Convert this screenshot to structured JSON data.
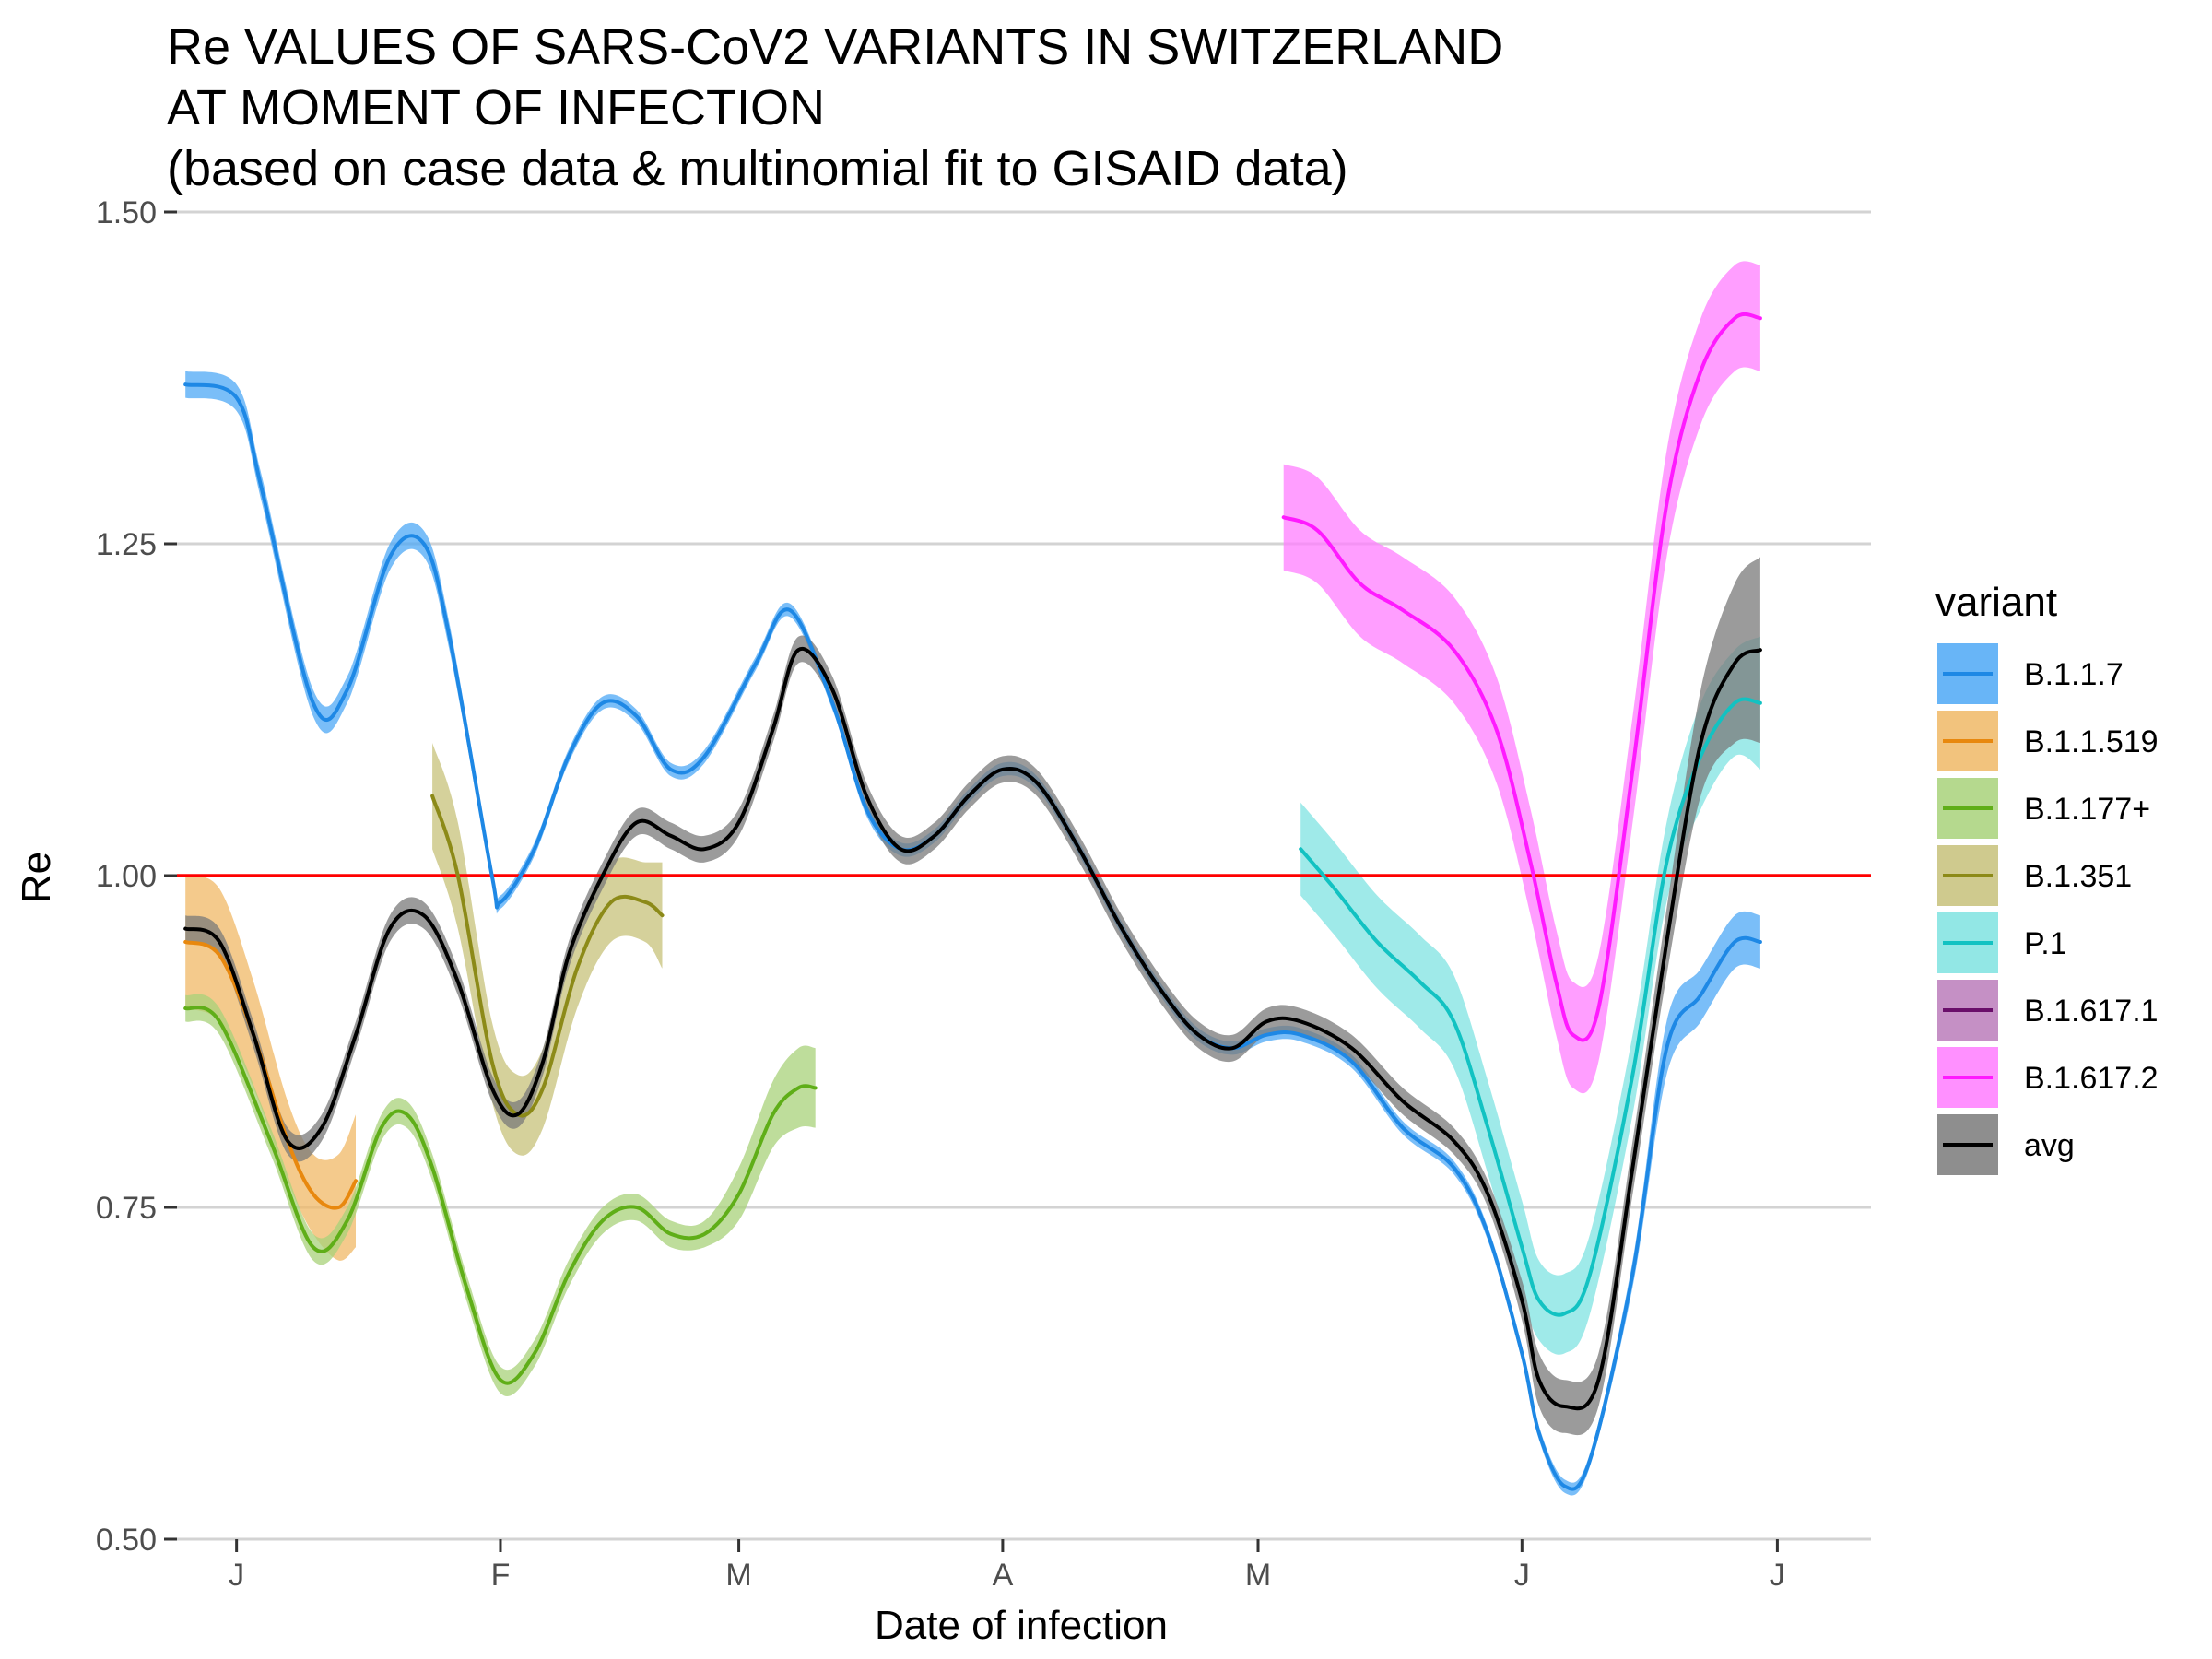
{
  "chart_data": {
    "type": "line",
    "title_lines": [
      "Re VALUES OF SARS-CoV2 VARIANTS IN SWITZERLAND",
      "AT MOMENT OF INFECTION",
      "(based on case data & multinomial fit to GISAID data)"
    ],
    "xlabel": "Date of infection",
    "ylabel": "Re",
    "x_ticks": [
      {
        "label": "J",
        "date": "2021-01-01"
      },
      {
        "label": "F",
        "date": "2021-02-01"
      },
      {
        "label": "M",
        "date": "2021-03-01"
      },
      {
        "label": "A",
        "date": "2021-04-01"
      },
      {
        "label": "M",
        "date": "2021-05-01"
      },
      {
        "label": "J",
        "date": "2021-06-01"
      },
      {
        "label": "J",
        "date": "2021-07-01"
      }
    ],
    "xlim": [
      "2020-12-25",
      "2021-07-12"
    ],
    "ylim": [
      0.5,
      1.5
    ],
    "y_ticks": [
      "0.50",
      "0.75",
      "1.00",
      "1.25",
      "1.50"
    ],
    "reference_line": {
      "y": 1.0,
      "color": "#ff0000"
    },
    "grid": true,
    "legend_title": "variant",
    "legend_position": "right",
    "series": [
      {
        "name": "B.1.1.7",
        "color": "#1e88e5",
        "band_color": "#4ea8f6",
        "x": [
          "2020-12-26",
          "2021-01-01",
          "2021-01-04",
          "2021-01-10",
          "2021-01-14",
          "2021-01-19",
          "2021-01-23",
          "2021-01-26",
          "2021-01-31",
          "2021-02-01",
          "2021-02-05",
          "2021-02-09",
          "2021-02-13",
          "2021-02-17",
          "2021-02-21",
          "2021-02-25",
          "2021-03-03",
          "2021-03-07",
          "2021-03-12",
          "2021-03-16",
          "2021-03-20",
          "2021-03-24",
          "2021-03-28",
          "2021-04-01",
          "2021-04-05",
          "2021-04-10",
          "2021-04-15",
          "2021-04-20",
          "2021-04-24",
          "2021-04-28",
          "2021-05-02",
          "2021-05-06",
          "2021-05-12",
          "2021-05-18",
          "2021-05-24",
          "2021-05-28",
          "2021-06-01",
          "2021-06-03",
          "2021-06-06",
          "2021-06-09",
          "2021-06-14",
          "2021-06-18",
          "2021-06-22",
          "2021-06-26",
          "2021-06-29"
        ],
        "values": [
          1.37,
          1.36,
          1.29,
          1.13,
          1.14,
          1.24,
          1.25,
          1.18,
          1.0,
          0.98,
          1.02,
          1.09,
          1.13,
          1.12,
          1.08,
          1.09,
          1.16,
          1.2,
          1.13,
          1.05,
          1.02,
          1.03,
          1.06,
          1.08,
          1.07,
          1.02,
          0.96,
          0.91,
          0.88,
          0.87,
          0.88,
          0.88,
          0.86,
          0.81,
          0.78,
          0.73,
          0.64,
          0.58,
          0.54,
          0.56,
          0.7,
          0.87,
          0.91,
          0.95,
          0.95
        ],
        "ci_half": [
          0.01,
          0.01,
          0.01,
          0.01,
          0.01,
          0.01,
          0.01,
          0.01,
          0.005,
          0.005,
          0.005,
          0.005,
          0.005,
          0.005,
          0.005,
          0.005,
          0.005,
          0.005,
          0.005,
          0.005,
          0.005,
          0.005,
          0.005,
          0.005,
          0.005,
          0.005,
          0.005,
          0.005,
          0.005,
          0.005,
          0.005,
          0.005,
          0.005,
          0.005,
          0.005,
          0.005,
          0.005,
          0.005,
          0.005,
          0.005,
          0.01,
          0.02,
          0.02,
          0.02,
          0.02
        ]
      },
      {
        "name": "B.1.1.519",
        "color": "#e8880e",
        "band_color": "#f0b866",
        "x": [
          "2020-12-26",
          "2020-12-30",
          "2021-01-03",
          "2021-01-07",
          "2021-01-10",
          "2021-01-13",
          "2021-01-15"
        ],
        "values": [
          0.95,
          0.94,
          0.88,
          0.8,
          0.76,
          0.75,
          0.77
        ],
        "ci_half": [
          0.05,
          0.05,
          0.04,
          0.03,
          0.03,
          0.04,
          0.05
        ]
      },
      {
        "name": "B.1.177+",
        "color": "#5fae18",
        "band_color": "#a8d27a",
        "x": [
          "2020-12-26",
          "2020-12-30",
          "2021-01-05",
          "2021-01-10",
          "2021-01-14",
          "2021-01-18",
          "2021-01-21",
          "2021-01-24",
          "2021-01-28",
          "2021-02-01",
          "2021-02-05",
          "2021-02-09",
          "2021-02-13",
          "2021-02-17",
          "2021-02-21",
          "2021-02-25",
          "2021-03-01",
          "2021-03-05",
          "2021-03-08",
          "2021-03-10"
        ],
        "values": [
          0.9,
          0.89,
          0.8,
          0.72,
          0.74,
          0.81,
          0.82,
          0.78,
          0.69,
          0.62,
          0.64,
          0.7,
          0.74,
          0.75,
          0.73,
          0.73,
          0.76,
          0.82,
          0.84,
          0.84
        ],
        "ci_half": [
          0.01,
          0.01,
          0.01,
          0.01,
          0.01,
          0.01,
          0.01,
          0.01,
          0.01,
          0.01,
          0.01,
          0.01,
          0.01,
          0.01,
          0.01,
          0.01,
          0.02,
          0.025,
          0.03,
          0.03
        ]
      },
      {
        "name": "B.1.351",
        "color": "#8c8a18",
        "band_color": "#c7c17a",
        "x": [
          "2021-01-24",
          "2021-01-27",
          "2021-01-31",
          "2021-02-03",
          "2021-02-06",
          "2021-02-10",
          "2021-02-14",
          "2021-02-18",
          "2021-02-20"
        ],
        "values": [
          1.06,
          1.0,
          0.86,
          0.82,
          0.84,
          0.93,
          0.98,
          0.98,
          0.97
        ],
        "ci_half": [
          0.04,
          0.04,
          0.03,
          0.03,
          0.03,
          0.03,
          0.03,
          0.03,
          0.04
        ]
      },
      {
        "name": "P.1",
        "color": "#12c2c2",
        "band_color": "#7fe3e1",
        "x": [
          "2021-05-06",
          "2021-05-10",
          "2021-05-15",
          "2021-05-20",
          "2021-05-24",
          "2021-05-28",
          "2021-06-01",
          "2021-06-03",
          "2021-06-06",
          "2021-06-09",
          "2021-06-14",
          "2021-06-18",
          "2021-06-22",
          "2021-06-26",
          "2021-06-29"
        ],
        "values": [
          1.02,
          0.99,
          0.95,
          0.92,
          0.89,
          0.81,
          0.72,
          0.68,
          0.67,
          0.7,
          0.85,
          1.01,
          1.09,
          1.13,
          1.13
        ],
        "ci_half": [
          0.035,
          0.035,
          0.035,
          0.035,
          0.035,
          0.035,
          0.035,
          0.03,
          0.03,
          0.03,
          0.03,
          0.03,
          0.04,
          0.04,
          0.05
        ]
      },
      {
        "name": "B.1.617.1",
        "color": "#6a0f6a",
        "band_color": "#bb7dbb",
        "x": [],
        "values": [],
        "ci_half": []
      },
      {
        "name": "B.1.617.2",
        "color": "#ff1aff",
        "band_color": "#ff7dff",
        "x": [
          "2021-05-04",
          "2021-05-08",
          "2021-05-13",
          "2021-05-18",
          "2021-05-24",
          "2021-05-29",
          "2021-06-02",
          "2021-06-05",
          "2021-06-07",
          "2021-06-10",
          "2021-06-14",
          "2021-06-18",
          "2021-06-22",
          "2021-06-26",
          "2021-06-29"
        ],
        "values": [
          1.27,
          1.26,
          1.22,
          1.2,
          1.17,
          1.11,
          1.01,
          0.92,
          0.88,
          0.9,
          1.08,
          1.28,
          1.38,
          1.42,
          1.42
        ],
        "ci_half": [
          0.04,
          0.04,
          0.04,
          0.04,
          0.04,
          0.04,
          0.04,
          0.04,
          0.04,
          0.04,
          0.04,
          0.04,
          0.04,
          0.04,
          0.04
        ]
      },
      {
        "name": "avg",
        "color": "#000000",
        "band_color": "#7a7a7a",
        "x": [
          "2020-12-26",
          "2020-12-30",
          "2021-01-03",
          "2021-01-07",
          "2021-01-11",
          "2021-01-15",
          "2021-01-19",
          "2021-01-23",
          "2021-01-27",
          "2021-01-31",
          "2021-02-03",
          "2021-02-06",
          "2021-02-09",
          "2021-02-13",
          "2021-02-17",
          "2021-02-21",
          "2021-02-25",
          "2021-03-01",
          "2021-03-05",
          "2021-03-08",
          "2021-03-12",
          "2021-03-16",
          "2021-03-20",
          "2021-03-24",
          "2021-03-28",
          "2021-04-01",
          "2021-04-05",
          "2021-04-10",
          "2021-04-15",
          "2021-04-20",
          "2021-04-24",
          "2021-04-28",
          "2021-05-02",
          "2021-05-06",
          "2021-05-12",
          "2021-05-18",
          "2021-05-24",
          "2021-05-28",
          "2021-06-01",
          "2021-06-03",
          "2021-06-06",
          "2021-06-10",
          "2021-06-14",
          "2021-06-18",
          "2021-06-22",
          "2021-06-26",
          "2021-06-29"
        ],
        "values": [
          0.96,
          0.95,
          0.88,
          0.8,
          0.81,
          0.88,
          0.96,
          0.97,
          0.92,
          0.84,
          0.82,
          0.86,
          0.94,
          1.0,
          1.04,
          1.03,
          1.02,
          1.04,
          1.11,
          1.17,
          1.14,
          1.06,
          1.02,
          1.03,
          1.06,
          1.08,
          1.07,
          1.02,
          0.96,
          0.91,
          0.88,
          0.87,
          0.89,
          0.89,
          0.87,
          0.83,
          0.8,
          0.76,
          0.68,
          0.62,
          0.6,
          0.62,
          0.78,
          0.95,
          1.1,
          1.16,
          1.17
        ],
        "ci_half": [
          0.01,
          0.01,
          0.01,
          0.01,
          0.01,
          0.01,
          0.01,
          0.01,
          0.01,
          0.01,
          0.01,
          0.01,
          0.01,
          0.01,
          0.01,
          0.01,
          0.01,
          0.01,
          0.01,
          0.01,
          0.01,
          0.01,
          0.01,
          0.01,
          0.01,
          0.01,
          0.01,
          0.01,
          0.01,
          0.01,
          0.01,
          0.01,
          0.01,
          0.01,
          0.01,
          0.01,
          0.01,
          0.01,
          0.015,
          0.02,
          0.02,
          0.02,
          0.02,
          0.025,
          0.04,
          0.06,
          0.07
        ]
      }
    ]
  }
}
